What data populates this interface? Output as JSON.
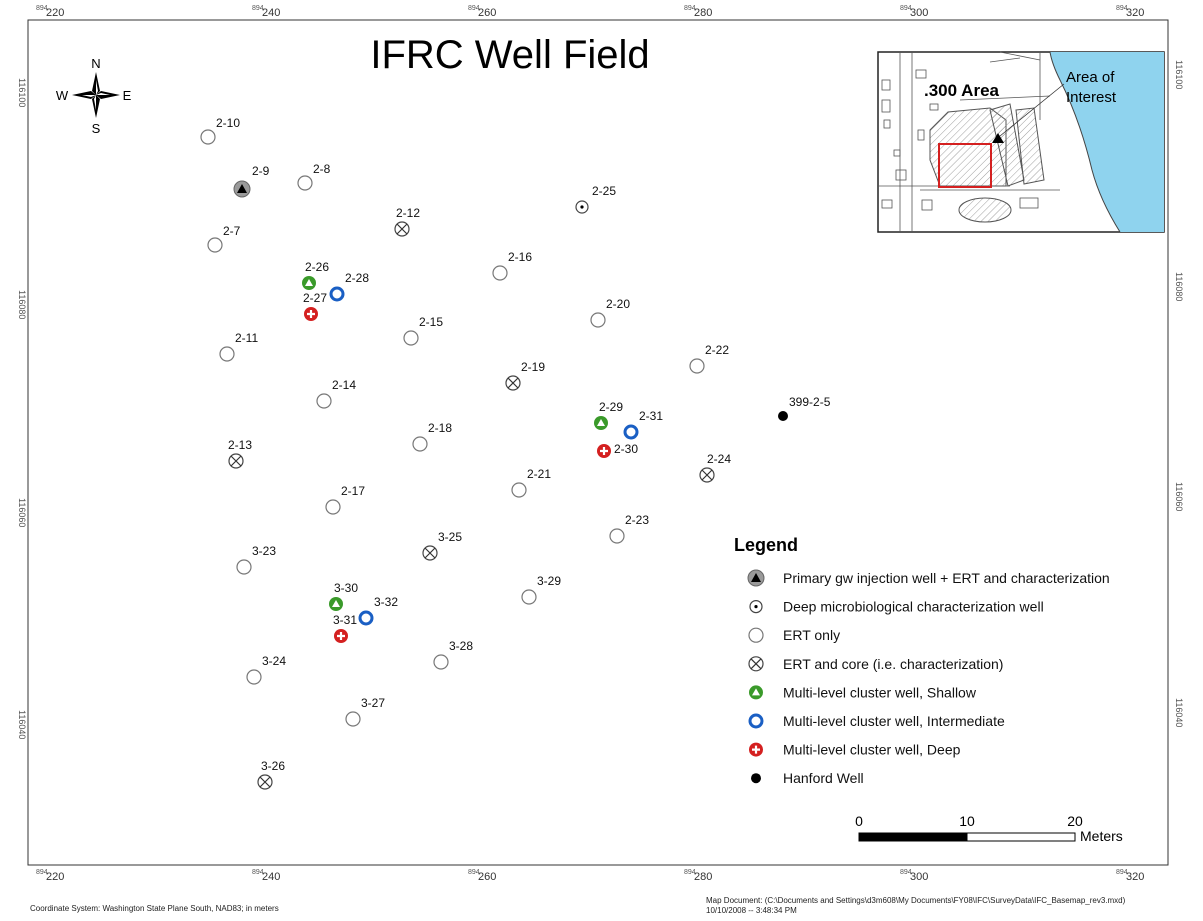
{
  "title": "IFRC Well Field",
  "compass": {
    "n": "N",
    "s": "S",
    "e": "E",
    "w": "W"
  },
  "axes": {
    "top_ticks": [
      {
        "sup": "894",
        "main": "220"
      },
      {
        "sup": "894",
        "main": "240"
      },
      {
        "sup": "894",
        "main": "260"
      },
      {
        "sup": "894",
        "main": "280"
      },
      {
        "sup": "894",
        "main": "300"
      },
      {
        "sup": "894",
        "main": "320"
      }
    ],
    "bottom_ticks": [
      {
        "sup": "894",
        "main": "220"
      },
      {
        "sup": "894",
        "main": "240"
      },
      {
        "sup": "894",
        "main": "260"
      },
      {
        "sup": "894",
        "main": "280"
      },
      {
        "sup": "894",
        "main": "300"
      },
      {
        "sup": "894",
        "main": "320"
      }
    ],
    "left_ticks": [
      "116100",
      "116080",
      "116060",
      "116040"
    ],
    "right_ticks": [
      "116100",
      "116080",
      "116060",
      "116040"
    ]
  },
  "wells": [
    {
      "label": "2-10",
      "type": "ert"
    },
    {
      "label": "2-9",
      "type": "primary"
    },
    {
      "label": "2-8",
      "type": "ert"
    },
    {
      "label": "2-7",
      "type": "ert"
    },
    {
      "label": "2-12",
      "type": "core"
    },
    {
      "label": "2-25",
      "type": "deep_micro"
    },
    {
      "label": "2-26",
      "type": "shallow"
    },
    {
      "label": "2-28",
      "type": "intermediate"
    },
    {
      "label": "2-27",
      "type": "deep"
    },
    {
      "label": "2-16",
      "type": "ert"
    },
    {
      "label": "2-20",
      "type": "ert"
    },
    {
      "label": "2-15",
      "type": "ert"
    },
    {
      "label": "2-11",
      "type": "ert"
    },
    {
      "label": "2-19",
      "type": "core"
    },
    {
      "label": "2-22",
      "type": "ert"
    },
    {
      "label": "2-14",
      "type": "ert"
    },
    {
      "label": "399-2-5",
      "type": "hanford"
    },
    {
      "label": "2-29",
      "type": "shallow"
    },
    {
      "label": "2-31",
      "type": "intermediate"
    },
    {
      "label": "2-30",
      "type": "deep"
    },
    {
      "label": "2-18",
      "type": "ert"
    },
    {
      "label": "2-13",
      "type": "core"
    },
    {
      "label": "2-24",
      "type": "core"
    },
    {
      "label": "2-21",
      "type": "ert"
    },
    {
      "label": "2-17",
      "type": "ert"
    },
    {
      "label": "2-23",
      "type": "ert"
    },
    {
      "label": "3-25",
      "type": "core"
    },
    {
      "label": "3-23",
      "type": "ert"
    },
    {
      "label": "3-29",
      "type": "ert"
    },
    {
      "label": "3-30",
      "type": "shallow"
    },
    {
      "label": "3-32",
      "type": "intermediate"
    },
    {
      "label": "3-31",
      "type": "deep"
    },
    {
      "label": "3-28",
      "type": "ert"
    },
    {
      "label": "3-24",
      "type": "ert"
    },
    {
      "label": "3-27",
      "type": "ert"
    },
    {
      "label": "3-26",
      "type": "core"
    }
  ],
  "inset": {
    "area_label": ".300 Area",
    "interest_label_1": "Area of",
    "interest_label_2": "Interest"
  },
  "legend": {
    "title": "Legend",
    "items": [
      {
        "type": "primary",
        "label": "Primary gw injection well + ERT and characterization"
      },
      {
        "type": "deep_micro",
        "label": "Deep microbiological characterization well"
      },
      {
        "type": "ert",
        "label": "ERT only"
      },
      {
        "type": "core",
        "label": "ERT and core (i.e. characterization)"
      },
      {
        "type": "shallow",
        "label": "Multi-level cluster well, Shallow"
      },
      {
        "type": "intermediate",
        "label": "Multi-level cluster well, Intermediate"
      },
      {
        "type": "deep",
        "label": "Multi-level cluster well, Deep"
      },
      {
        "type": "hanford",
        "label": "Hanford Well"
      }
    ]
  },
  "scale_bar": {
    "labels": [
      "0",
      "10",
      "20"
    ],
    "unit": "Meters"
  },
  "footer": {
    "coord_system": "Coordinate System: Washington State Plane South, NAD83; in meters",
    "map_doc": "Map Document: (C:\\Documents and Settings\\d3m608\\My Documents\\FY08\\IFC\\SurveyData\\IFC_Basemap_rev3.mxd)",
    "timestamp": "10/10/2008 -- 3:48:34 PM"
  },
  "colors": {
    "shallow": "#3a9a2a",
    "intermediate": "#1a5fc4",
    "deep": "#d42020",
    "water": "#8fd3ee",
    "inset_box": "#d42020"
  }
}
